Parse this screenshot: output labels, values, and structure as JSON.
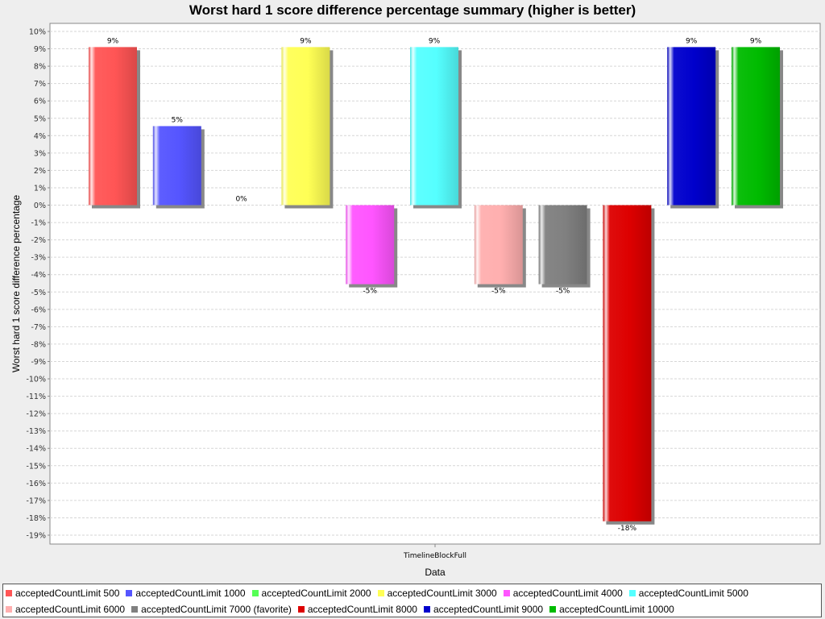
{
  "chart_data": {
    "type": "bar",
    "title": "Worst hard 1 score difference percentage summary (higher is better)",
    "xlabel": "Data",
    "ylabel": "Worst hard 1 score difference percentage",
    "categories": [
      "TimelineBlockFull"
    ],
    "ylim": [
      -19.5,
      10.5
    ],
    "yticks": [
      10,
      9,
      8,
      7,
      6,
      5,
      4,
      3,
      2,
      1,
      0,
      -1,
      -2,
      -3,
      -4,
      -5,
      -6,
      -7,
      -8,
      -9,
      -10,
      -11,
      -12,
      -13,
      -14,
      -15,
      -16,
      -17,
      -18,
      -19
    ],
    "tick_suffix": "%",
    "grid": true,
    "legend_position": "bottom",
    "series": [
      {
        "name": "acceptedCountLimit 500",
        "values": [
          9.1
        ],
        "label": "9%",
        "color": "#ff5555"
      },
      {
        "name": "acceptedCountLimit 1000",
        "values": [
          4.55
        ],
        "label": "5%",
        "color": "#5555ff"
      },
      {
        "name": "acceptedCountLimit 2000",
        "values": [
          0
        ],
        "label": "0%",
        "color": "#55ff55"
      },
      {
        "name": "acceptedCountLimit 3000",
        "values": [
          9.1
        ],
        "label": "9%",
        "color": "#ffff55"
      },
      {
        "name": "acceptedCountLimit 4000",
        "values": [
          -4.55
        ],
        "label": "-5%",
        "color": "#ff55ff"
      },
      {
        "name": "acceptedCountLimit 5000",
        "values": [
          9.1
        ],
        "label": "9%",
        "color": "#55ffff"
      },
      {
        "name": "acceptedCountLimit 6000",
        "values": [
          -4.55
        ],
        "label": "-5%",
        "color": "#ffafaf"
      },
      {
        "name": "acceptedCountLimit 7000 (favorite)",
        "values": [
          -4.55
        ],
        "label": "-5%",
        "color": "#808080"
      },
      {
        "name": "acceptedCountLimit 8000",
        "values": [
          -18.2
        ],
        "label": "-18%",
        "color": "#dd0000"
      },
      {
        "name": "acceptedCountLimit 9000",
        "values": [
          9.1
        ],
        "label": "9%",
        "color": "#0000cc"
      },
      {
        "name": "acceptedCountLimit 10000",
        "values": [
          9.1
        ],
        "label": "9%",
        "color": "#00bb00"
      }
    ]
  }
}
